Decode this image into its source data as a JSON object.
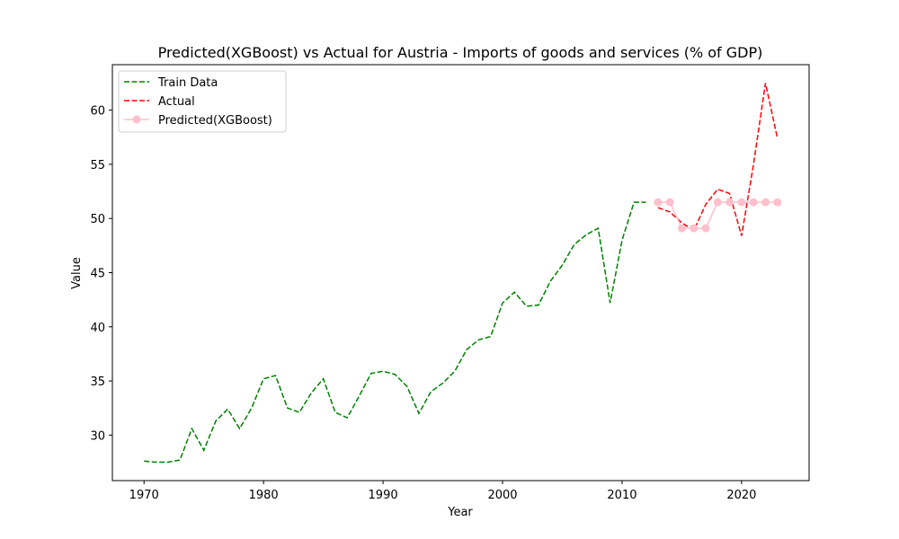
{
  "chart_data": {
    "type": "line",
    "title": "Predicted(XGBoost) vs Actual for Austria - Imports of goods and services (% of GDP)",
    "xlabel": "Year",
    "ylabel": "Value",
    "xlim": [
      1967.35,
      2025.65
    ],
    "ylim": [
      25.8,
      64.2
    ],
    "xticks": [
      1970,
      1980,
      1990,
      2000,
      2010,
      2020
    ],
    "yticks": [
      30,
      35,
      40,
      45,
      50,
      55,
      60
    ],
    "grid": false,
    "legend_position": "top-left",
    "series": [
      {
        "name": "Train Data",
        "color": "#008000",
        "style": "dashed",
        "marker": "none",
        "x": [
          1970,
          1971,
          1972,
          1973,
          1974,
          1975,
          1976,
          1977,
          1978,
          1979,
          1980,
          1981,
          1982,
          1983,
          1984,
          1985,
          1986,
          1987,
          1988,
          1989,
          1990,
          1991,
          1992,
          1993,
          1994,
          1995,
          1996,
          1997,
          1998,
          1999,
          2000,
          2001,
          2002,
          2003,
          2004,
          2005,
          2006,
          2007,
          2008,
          2009,
          2010,
          2011,
          2012
        ],
        "y": [
          27.6,
          27.5,
          27.5,
          27.7,
          30.6,
          28.6,
          31.3,
          32.4,
          30.6,
          32.5,
          35.2,
          35.5,
          32.5,
          32.1,
          33.9,
          35.2,
          32.1,
          31.6,
          33.6,
          35.7,
          35.9,
          35.6,
          34.5,
          32.0,
          34.0,
          34.8,
          35.9,
          37.9,
          38.8,
          39.1,
          42.2,
          43.2,
          41.9,
          42.0,
          44.2,
          45.7,
          47.6,
          48.5,
          49.1,
          42.2,
          48.0,
          51.5,
          51.5
        ]
      },
      {
        "name": "Actual",
        "color": "#ff0000",
        "style": "dashed",
        "marker": "none",
        "x": [
          2013,
          2014,
          2015,
          2016,
          2017,
          2018,
          2019,
          2020,
          2021,
          2022,
          2023
        ],
        "y": [
          51.0,
          50.6,
          49.6,
          48.9,
          51.3,
          52.7,
          52.3,
          48.4,
          55.0,
          62.5,
          57.4
        ]
      },
      {
        "name": "Predicted(XGBoost)",
        "color": "#ffc0cb",
        "style": "solid",
        "marker": "circle",
        "x": [
          2013,
          2014,
          2015,
          2016,
          2017,
          2018,
          2019,
          2020,
          2021,
          2022,
          2023
        ],
        "y": [
          51.5,
          51.5,
          49.1,
          49.1,
          49.1,
          51.5,
          51.5,
          51.5,
          51.5,
          51.5,
          51.5
        ]
      }
    ]
  }
}
